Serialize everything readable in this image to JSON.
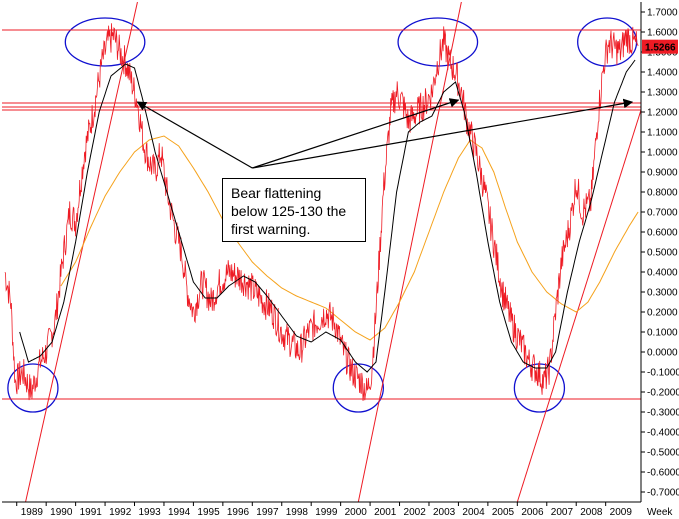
{
  "chart_data": {
    "type": "line",
    "x_unit_label": "Week",
    "years": [
      "1989",
      "1990",
      "1991",
      "1992",
      "1993",
      "1994",
      "1995",
      "1996",
      "1997",
      "1998",
      "1999",
      "2000",
      "2001",
      "2002",
      "2003",
      "2004",
      "2005",
      "2006",
      "2007",
      "2008",
      "2009"
    ],
    "yticks": [
      "1.7000",
      "1.6000",
      "1.5000",
      "1.4000",
      "1.3000",
      "1.2000",
      "1.1000",
      "1.0000",
      "0.9000",
      "0.8000",
      "0.7000",
      "0.6000",
      "0.5000",
      "0.4000",
      "0.3000",
      "0.2000",
      "0.1000",
      "0.0000",
      "-0.1000",
      "-0.2000",
      "-0.3000",
      "-0.4000",
      "-0.5000",
      "-0.6000",
      "-0.7000"
    ],
    "ylim": [
      -0.75,
      1.75
    ],
    "xlim": [
      1988.5,
      2010.2
    ],
    "last_value": "1.5266",
    "colors": {
      "price": "#ee1b24",
      "ma_short": "#000000",
      "ma_long": "#f5a21b",
      "hline": "#ee1b24",
      "trend": "#ee1b24",
      "ellipse": "#1010d0",
      "arrow": "#000000",
      "last_value_bg": "#ee1b24",
      "last_value_text": "#ffffff"
    },
    "horizontal_lines": [
      1.61,
      1.245,
      1.225,
      1.21,
      -0.235
    ],
    "price_anchors": [
      [
        1988.6,
        0.4
      ],
      [
        1988.8,
        0.25
      ],
      [
        1988.95,
        -0.15
      ],
      [
        1989.2,
        -0.1
      ],
      [
        1989.5,
        -0.2
      ],
      [
        1989.8,
        -0.05
      ],
      [
        1990.0,
        0.0
      ],
      [
        1990.3,
        0.15
      ],
      [
        1990.6,
        0.5
      ],
      [
        1990.8,
        0.7
      ],
      [
        1991.0,
        0.65
      ],
      [
        1991.3,
        1.0
      ],
      [
        1991.6,
        1.2
      ],
      [
        1991.9,
        1.45
      ],
      [
        1992.1,
        1.55
      ],
      [
        1992.3,
        1.58
      ],
      [
        1992.5,
        1.5
      ],
      [
        1992.7,
        1.45
      ],
      [
        1992.9,
        1.35
      ],
      [
        1993.1,
        1.25
      ],
      [
        1993.3,
        1.05
      ],
      [
        1993.5,
        0.95
      ],
      [
        1993.7,
        0.9
      ],
      [
        1993.9,
        1.0
      ],
      [
        1994.1,
        0.8
      ],
      [
        1994.4,
        0.6
      ],
      [
        1994.6,
        0.5
      ],
      [
        1994.8,
        0.3
      ],
      [
        1995.0,
        0.2
      ],
      [
        1995.3,
        0.35
      ],
      [
        1995.6,
        0.25
      ],
      [
        1995.9,
        0.35
      ],
      [
        1996.2,
        0.4
      ],
      [
        1996.5,
        0.38
      ],
      [
        1996.8,
        0.35
      ],
      [
        1997.1,
        0.3
      ],
      [
        1997.4,
        0.25
      ],
      [
        1997.7,
        0.2
      ],
      [
        1998.0,
        0.1
      ],
      [
        1998.3,
        0.05
      ],
      [
        1998.6,
        0.0
      ],
      [
        1998.9,
        0.1
      ],
      [
        1999.2,
        0.15
      ],
      [
        1999.5,
        0.2
      ],
      [
        1999.8,
        0.15
      ],
      [
        2000.1,
        0.0
      ],
      [
        2000.4,
        -0.1
      ],
      [
        2000.7,
        -0.15
      ],
      [
        2000.9,
        -0.2
      ],
      [
        2001.05,
        -0.1
      ],
      [
        2001.2,
        0.2
      ],
      [
        2001.45,
        0.8
      ],
      [
        2001.7,
        1.2
      ],
      [
        2001.9,
        1.3
      ],
      [
        2002.1,
        1.25
      ],
      [
        2002.3,
        1.15
      ],
      [
        2002.6,
        1.2
      ],
      [
        2002.9,
        1.25
      ],
      [
        2003.1,
        1.3
      ],
      [
        2003.3,
        1.45
      ],
      [
        2003.5,
        1.55
      ],
      [
        2003.7,
        1.45
      ],
      [
        2003.9,
        1.4
      ],
      [
        2004.1,
        1.3
      ],
      [
        2004.3,
        1.15
      ],
      [
        2004.6,
        1.0
      ],
      [
        2004.9,
        0.8
      ],
      [
        2005.2,
        0.55
      ],
      [
        2005.5,
        0.3
      ],
      [
        2005.8,
        0.15
      ],
      [
        2006.1,
        0.05
      ],
      [
        2006.4,
        -0.05
      ],
      [
        2006.7,
        -0.1
      ],
      [
        2006.9,
        -0.15
      ],
      [
        2007.1,
        -0.08
      ],
      [
        2007.3,
        0.2
      ],
      [
        2007.5,
        0.45
      ],
      [
        2007.8,
        0.65
      ],
      [
        2008.0,
        0.85
      ],
      [
        2008.2,
        0.7
      ],
      [
        2008.5,
        0.75
      ],
      [
        2008.75,
        1.2
      ],
      [
        2008.95,
        1.45
      ],
      [
        2009.1,
        1.55
      ],
      [
        2009.3,
        1.52
      ],
      [
        2009.5,
        1.5
      ],
      [
        2009.7,
        1.58
      ],
      [
        2009.9,
        1.55
      ],
      [
        2010.1,
        1.53
      ]
    ],
    "ma_short_anchors": [
      [
        1989.1,
        0.1
      ],
      [
        1989.4,
        -0.05
      ],
      [
        1989.8,
        -0.02
      ],
      [
        1990.2,
        0.05
      ],
      [
        1990.6,
        0.25
      ],
      [
        1991.0,
        0.55
      ],
      [
        1991.4,
        0.9
      ],
      [
        1991.8,
        1.2
      ],
      [
        1992.2,
        1.38
      ],
      [
        1992.7,
        1.44
      ],
      [
        1993.0,
        1.42
      ],
      [
        1993.3,
        1.25
      ],
      [
        1993.7,
        1.0
      ],
      [
        1994.2,
        0.75
      ],
      [
        1994.6,
        0.55
      ],
      [
        1995.0,
        0.35
      ],
      [
        1995.4,
        0.27
      ],
      [
        1995.8,
        0.27
      ],
      [
        1996.2,
        0.33
      ],
      [
        1996.7,
        0.38
      ],
      [
        1997.1,
        0.35
      ],
      [
        1997.5,
        0.28
      ],
      [
        1998.0,
        0.18
      ],
      [
        1998.5,
        0.08
      ],
      [
        1999.0,
        0.05
      ],
      [
        1999.5,
        0.1
      ],
      [
        2000.0,
        0.06
      ],
      [
        2000.5,
        -0.05
      ],
      [
        2000.9,
        -0.1
      ],
      [
        2001.2,
        -0.05
      ],
      [
        2001.5,
        0.3
      ],
      [
        2001.9,
        0.8
      ],
      [
        2002.3,
        1.1
      ],
      [
        2002.7,
        1.15
      ],
      [
        2003.1,
        1.18
      ],
      [
        2003.5,
        1.3
      ],
      [
        2003.9,
        1.35
      ],
      [
        2004.2,
        1.2
      ],
      [
        2004.6,
        0.9
      ],
      [
        2005.0,
        0.55
      ],
      [
        2005.4,
        0.25
      ],
      [
        2005.8,
        0.05
      ],
      [
        2006.2,
        -0.05
      ],
      [
        2006.6,
        -0.08
      ],
      [
        2007.0,
        -0.08
      ],
      [
        2007.3,
        0.0
      ],
      [
        2007.7,
        0.3
      ],
      [
        2008.1,
        0.55
      ],
      [
        2008.5,
        0.75
      ],
      [
        2008.9,
        1.0
      ],
      [
        2009.3,
        1.25
      ],
      [
        2009.7,
        1.4
      ],
      [
        2010.0,
        1.46
      ]
    ],
    "ma_long_anchors": [
      [
        1990.5,
        0.33
      ],
      [
        1991.0,
        0.45
      ],
      [
        1991.5,
        0.62
      ],
      [
        1992.0,
        0.78
      ],
      [
        1992.5,
        0.9
      ],
      [
        1993.0,
        1.0
      ],
      [
        1993.5,
        1.06
      ],
      [
        1994.0,
        1.08
      ],
      [
        1994.5,
        1.03
      ],
      [
        1995.0,
        0.92
      ],
      [
        1995.5,
        0.8
      ],
      [
        1996.0,
        0.66
      ],
      [
        1996.5,
        0.55
      ],
      [
        1997.0,
        0.45
      ],
      [
        1997.5,
        0.38
      ],
      [
        1998.0,
        0.32
      ],
      [
        1998.5,
        0.28
      ],
      [
        1999.0,
        0.25
      ],
      [
        1999.5,
        0.22
      ],
      [
        2000.0,
        0.16
      ],
      [
        2000.5,
        0.1
      ],
      [
        2001.0,
        0.06
      ],
      [
        2001.5,
        0.12
      ],
      [
        2002.0,
        0.25
      ],
      [
        2002.5,
        0.4
      ],
      [
        2003.0,
        0.6
      ],
      [
        2003.5,
        0.8
      ],
      [
        2004.0,
        0.97
      ],
      [
        2004.4,
        1.06
      ],
      [
        2004.8,
        1.02
      ],
      [
        2005.2,
        0.9
      ],
      [
        2005.6,
        0.72
      ],
      [
        2006.0,
        0.55
      ],
      [
        2006.5,
        0.4
      ],
      [
        2007.0,
        0.3
      ],
      [
        2007.5,
        0.24
      ],
      [
        2008.0,
        0.2
      ],
      [
        2008.4,
        0.25
      ],
      [
        2008.8,
        0.35
      ],
      [
        2009.3,
        0.5
      ],
      [
        2009.8,
        0.63
      ],
      [
        2010.1,
        0.7
      ]
    ],
    "trend_lines": [
      [
        [
          1989.3,
          -0.75
        ],
        [
          1993.1,
          1.75
        ]
      ],
      [
        [
          2000.6,
          -0.75
        ],
        [
          2004.1,
          1.75
        ]
      ],
      [
        [
          2006.0,
          -0.75
        ],
        [
          2010.5,
          1.35
        ]
      ]
    ],
    "ellipses": [
      [
        1992.0,
        1.55,
        1.35,
        0.12
      ],
      [
        2003.3,
        1.55,
        1.35,
        0.12
      ],
      [
        2009.05,
        1.55,
        1.0,
        0.12
      ],
      [
        1989.55,
        -0.18,
        0.85,
        0.12
      ],
      [
        2000.6,
        -0.18,
        0.85,
        0.12
      ],
      [
        2006.75,
        -0.18,
        0.85,
        0.12
      ]
    ],
    "arrows": {
      "origin": [
        1997.0,
        0.92
      ],
      "targets": [
        [
          1993.1,
          1.25
        ],
        [
          2004.0,
          1.26
        ],
        [
          2009.9,
          1.25
        ]
      ]
    },
    "annotation": {
      "lines": [
        "Bear flattening",
        "below 125-130 the",
        "first warning."
      ]
    }
  }
}
